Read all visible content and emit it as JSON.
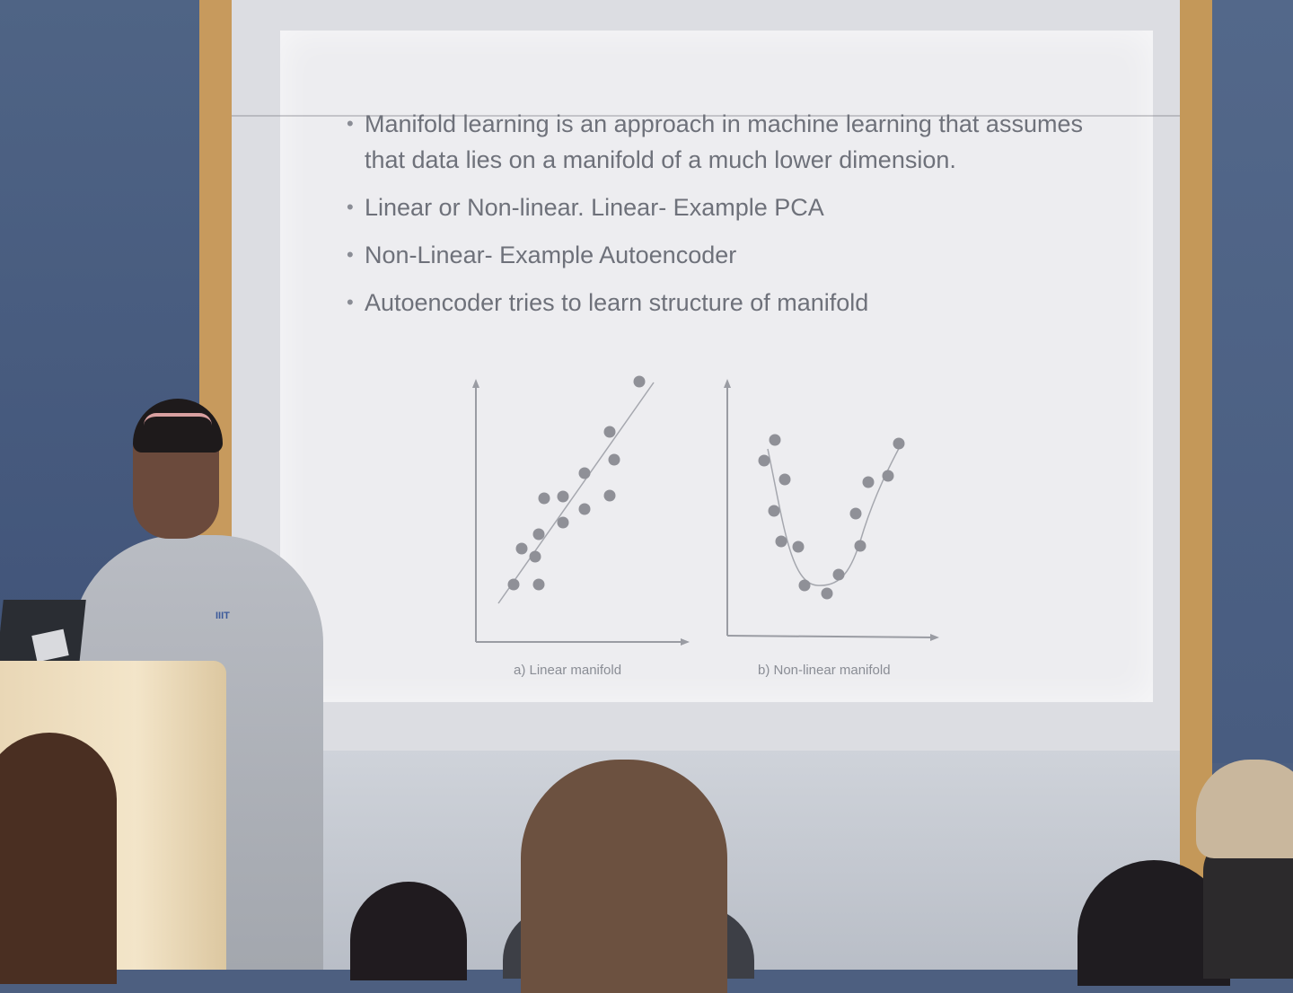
{
  "slide": {
    "bullets": [
      "Manifold learning is an approach in machine learning that assumes that data lies on a manifold of a much lower dimension.",
      "Linear or Non-linear.  Linear- Example PCA",
      "Non-Linear-  Example Autoencoder",
      "Autoencoder tries to learn structure of manifold"
    ],
    "figure": {
      "caption_a": "a) Linear manifold",
      "caption_b": "b) Non-linear manifold"
    }
  },
  "presenter": {
    "shirt_logo": "IIIT"
  },
  "colors": {
    "slide_bg": "#ededf0",
    "text": "#6e717a",
    "points": "#8f9097",
    "wall": "#4d5f80",
    "frame": "#c79a5d"
  }
}
